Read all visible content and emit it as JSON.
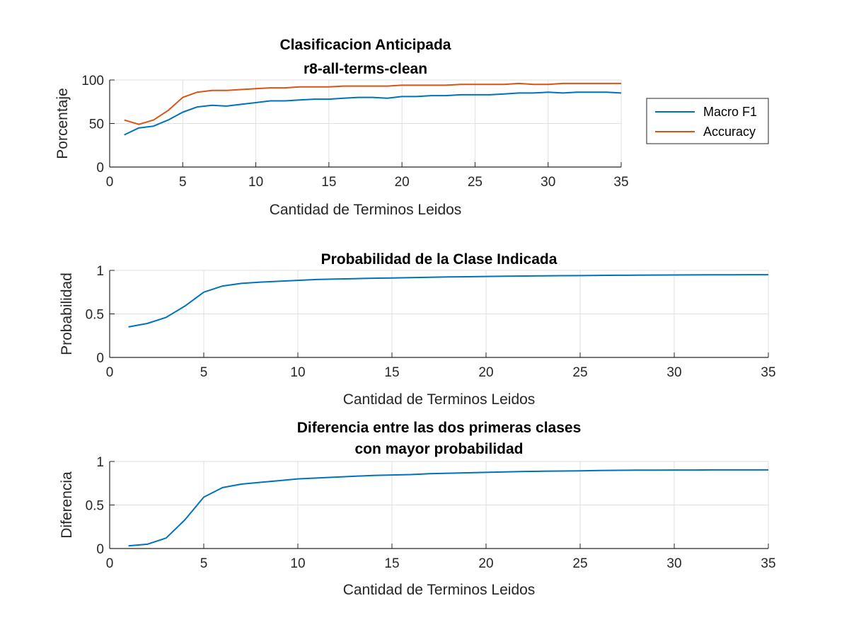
{
  "chart_data": [
    {
      "type": "line",
      "title": [
        "Clasificacion Anticipada",
        "r8-all-terms-clean"
      ],
      "xlabel": "Cantidad de Terminos Leidos",
      "ylabel": "Porcentaje",
      "xlim": [
        0,
        35
      ],
      "ylim": [
        0,
        100
      ],
      "xticks": [
        "0",
        "5",
        "10",
        "15",
        "20",
        "25",
        "30",
        "35"
      ],
      "yticks": [
        "0",
        "50",
        "100"
      ],
      "grid": true,
      "legend": "outside-right",
      "x": [
        1,
        2,
        3,
        4,
        5,
        6,
        7,
        8,
        9,
        10,
        11,
        12,
        13,
        14,
        15,
        16,
        17,
        18,
        19,
        20,
        21,
        22,
        23,
        24,
        25,
        26,
        27,
        28,
        29,
        30,
        31,
        32,
        33,
        34,
        35
      ],
      "series": [
        {
          "name": "Macro F1",
          "color": "#0072BD",
          "values": [
            37,
            45,
            47,
            54,
            63,
            69,
            71,
            70,
            72,
            74,
            76,
            76,
            77,
            78,
            78,
            79,
            80,
            80,
            79,
            81,
            81,
            82,
            82,
            83,
            83,
            83,
            84,
            85,
            85,
            86,
            85,
            86,
            86,
            86,
            85
          ]
        },
        {
          "name": "Accuracy",
          "color": "#D95319",
          "values": [
            54,
            49,
            54,
            65,
            80,
            86,
            88,
            88,
            89,
            90,
            91,
            91,
            92,
            92,
            92,
            93,
            93,
            93,
            93,
            94,
            94,
            94,
            94,
            95,
            95,
            95,
            95,
            96,
            95,
            95,
            96,
            96,
            96,
            96,
            96
          ]
        }
      ]
    },
    {
      "type": "line",
      "title": [
        "Probabilidad de la Clase Indicada"
      ],
      "xlabel": "Cantidad de Terminos Leidos",
      "ylabel": "Probabilidad",
      "xlim": [
        0,
        35
      ],
      "ylim": [
        0,
        1
      ],
      "xticks": [
        "0",
        "5",
        "10",
        "15",
        "20",
        "25",
        "30",
        "35"
      ],
      "yticks": [
        "0",
        "0.5",
        "1"
      ],
      "grid": true,
      "x": [
        1,
        2,
        3,
        4,
        5,
        6,
        7,
        8,
        9,
        10,
        11,
        12,
        13,
        14,
        15,
        16,
        17,
        18,
        19,
        20,
        21,
        22,
        23,
        24,
        25,
        26,
        27,
        28,
        29,
        30,
        31,
        32,
        33,
        34,
        35
      ],
      "series": [
        {
          "color": "#0072BD",
          "values": [
            0.35,
            0.39,
            0.46,
            0.59,
            0.75,
            0.82,
            0.85,
            0.865,
            0.875,
            0.885,
            0.895,
            0.9,
            0.905,
            0.91,
            0.913,
            0.917,
            0.92,
            0.924,
            0.927,
            0.93,
            0.933,
            0.935,
            0.937,
            0.939,
            0.94,
            0.942,
            0.944,
            0.945,
            0.946,
            0.947,
            0.948,
            0.949,
            0.949,
            0.95,
            0.95
          ]
        }
      ]
    },
    {
      "type": "line",
      "title": [
        "Diferencia entre las dos primeras clases",
        "con mayor probabilidad"
      ],
      "xlabel": "Cantidad de Terminos Leidos",
      "ylabel": "Diferencia",
      "xlim": [
        0,
        35
      ],
      "ylim": [
        0,
        1
      ],
      "xticks": [
        "0",
        "5",
        "10",
        "15",
        "20",
        "25",
        "30",
        "35"
      ],
      "yticks": [
        "0",
        "0.5",
        "1"
      ],
      "grid": true,
      "x": [
        1,
        2,
        3,
        4,
        5,
        6,
        7,
        8,
        9,
        10,
        11,
        12,
        13,
        14,
        15,
        16,
        17,
        18,
        19,
        20,
        21,
        22,
        23,
        24,
        25,
        26,
        27,
        28,
        29,
        30,
        31,
        32,
        33,
        34,
        35
      ],
      "series": [
        {
          "color": "#0072BD",
          "values": [
            0.03,
            0.05,
            0.12,
            0.33,
            0.59,
            0.7,
            0.74,
            0.76,
            0.78,
            0.8,
            0.81,
            0.82,
            0.83,
            0.84,
            0.845,
            0.85,
            0.86,
            0.865,
            0.87,
            0.875,
            0.88,
            0.885,
            0.888,
            0.89,
            0.893,
            0.896,
            0.898,
            0.9,
            0.9,
            0.902,
            0.902,
            0.903,
            0.903,
            0.903,
            0.903
          ]
        }
      ]
    }
  ]
}
